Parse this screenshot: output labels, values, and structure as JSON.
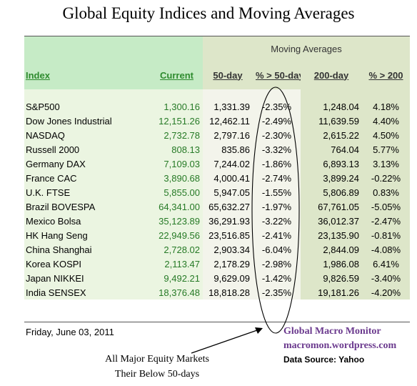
{
  "title": "Global Equity Indices and Moving Averages",
  "header": {
    "moving_averages": "Moving Averages",
    "index": "Index",
    "current": "Current",
    "ma50": "50-day",
    "pct50": "% > 50-day",
    "ma200": "200-day",
    "pct200": "% > 200"
  },
  "rows": [
    {
      "index": "S&P500",
      "current": "1,300.16",
      "ma50": "1,331.39",
      "pct50": "-2.35%",
      "ma200": "1,248.04",
      "pct200": "4.18%"
    },
    {
      "index": "Dow Jones Industrial",
      "current": "12,151.26",
      "ma50": "12,462.11",
      "pct50": "-2.49%",
      "ma200": "11,639.59",
      "pct200": "4.40%"
    },
    {
      "index": "NASDAQ",
      "current": "2,732.78",
      "ma50": "2,797.16",
      "pct50": "-2.30%",
      "ma200": "2,615.22",
      "pct200": "4.50%"
    },
    {
      "index": "Russell 2000",
      "current": "808.13",
      "ma50": "835.86",
      "pct50": "-3.32%",
      "ma200": "764.04",
      "pct200": "5.77%"
    },
    {
      "index": "Germany DAX",
      "current": "7,109.03",
      "ma50": "7,244.02",
      "pct50": "-1.86%",
      "ma200": "6,893.13",
      "pct200": "3.13%"
    },
    {
      "index": "France CAC",
      "current": "3,890.68",
      "ma50": "4,000.41",
      "pct50": "-2.74%",
      "ma200": "3,899.24",
      "pct200": "-0.22%"
    },
    {
      "index": "U.K. FTSE",
      "current": "5,855.00",
      "ma50": "5,947.05",
      "pct50": "-1.55%",
      "ma200": "5,806.89",
      "pct200": "0.83%"
    },
    {
      "index": "Brazil BOVESPA",
      "current": "64,341.00",
      "ma50": "65,632.27",
      "pct50": "-1.97%",
      "ma200": "67,761.05",
      "pct200": "-5.05%"
    },
    {
      "index": "Mexico Bolsa",
      "current": "35,123.89",
      "ma50": "36,291.93",
      "pct50": "-3.22%",
      "ma200": "36,012.37",
      "pct200": "-2.47%"
    },
    {
      "index": "HK  Hang Seng",
      "current": "22,949.56",
      "ma50": "23,516.85",
      "pct50": "-2.41%",
      "ma200": "23,135.90",
      "pct200": "-0.81%"
    },
    {
      "index": "China Shanghai",
      "current": "2,728.02",
      "ma50": "2,903.34",
      "pct50": "-6.04%",
      "ma200": "2,844.09",
      "pct200": "-4.08%"
    },
    {
      "index": "Korea KOSPI",
      "current": "2,113.47",
      "ma50": "2,178.29",
      "pct50": "-2.98%",
      "ma200": "1,986.08",
      "pct200": "6.41%"
    },
    {
      "index": "Japan NIKKEI",
      "current": "9,492.21",
      "ma50": "9,629.09",
      "pct50": "-1.42%",
      "ma200": "9,826.59",
      "pct200": "-3.40%"
    },
    {
      "index": "India SENSEX",
      "current": "18,376.48",
      "ma50": "18,818.28",
      "pct50": "-2.35%",
      "ma200": "19,181.26",
      "pct200": "-4.20%"
    }
  ],
  "footer": {
    "date": "Friday, June 03, 2011",
    "brand": "Global Macro Monitor",
    "site": "macromon.wordpress.com",
    "source": "Data Source: Yahoo"
  },
  "annotation": {
    "line1": "All Major Equity Markets",
    "line2": "Their Below 50-days"
  }
}
